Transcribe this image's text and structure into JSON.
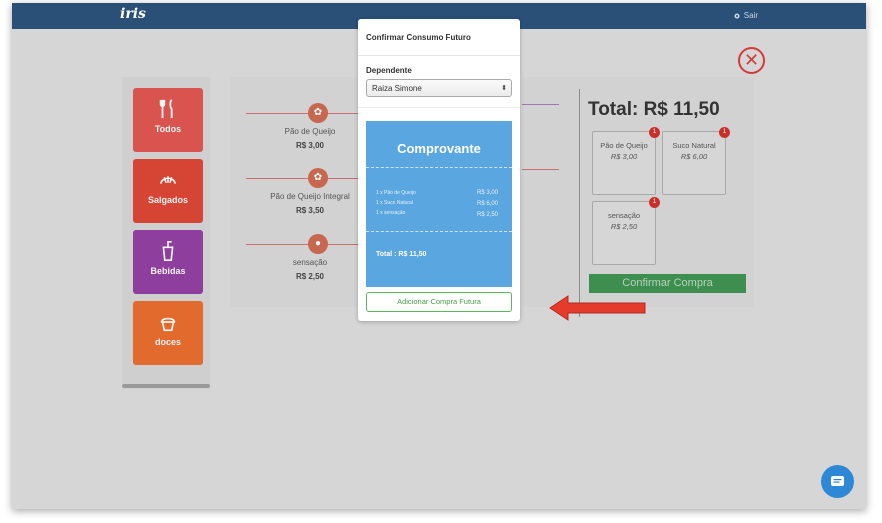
{
  "header": {
    "logo": "iris",
    "logout_label": "Sair"
  },
  "categories": [
    {
      "label": "Todos",
      "icon": "fork-knife-icon",
      "color": "#d9534f"
    },
    {
      "label": "Salgados",
      "icon": "croissant-icon",
      "color": "#d64533"
    },
    {
      "label": "Bebidas",
      "icon": "drink-cup-icon",
      "color": "#8e3f9e"
    },
    {
      "label": "doces",
      "icon": "cupcake-icon",
      "color": "#e26a2c"
    }
  ],
  "products": [
    {
      "name": "Pão de Queijo",
      "price": "R$ 3,00"
    },
    {
      "name": "Pão de Queijo Integral",
      "price": "R$ 3,50"
    },
    {
      "name": "sensação",
      "price": "R$ 2,50"
    }
  ],
  "cart": {
    "total_label": "Total: R$ 11,50",
    "items": [
      {
        "name": "Pão de Queijo",
        "price": "R$ 3,00",
        "qty": "1"
      },
      {
        "name": "Suco Natural",
        "price": "R$ 6,00",
        "qty": "1"
      },
      {
        "name": "sensação",
        "price": "R$ 2,50",
        "qty": "1"
      }
    ],
    "confirm_label": "Confirmar Compra"
  },
  "modal": {
    "title": "Confirmar Consumo Futuro",
    "dependent_label": "Dependente",
    "dependent_value": "Raiza Simone",
    "receipt": {
      "title": "Comprovante",
      "lines": [
        {
          "desc": "1 x Pão de Queijo",
          "price": "R$ 3,00"
        },
        {
          "desc": "1 x Suco Natural",
          "price": "R$ 6,00"
        },
        {
          "desc": "1 x sensação",
          "price": "R$ 2,50"
        }
      ],
      "total": "Total : R$ 11,50"
    },
    "add_button_label": "Adicionar Compra Futura"
  },
  "colors": {
    "topbar": "#2a5077",
    "receipt": "#5aa6e0",
    "confirm": "#3e8e4f",
    "arrow": "#e53b2c"
  }
}
